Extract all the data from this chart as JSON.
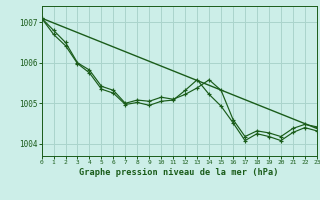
{
  "background_color": "#cceee8",
  "grid_color": "#aad4cc",
  "line_color": "#1a5c1a",
  "title": "Graphe pression niveau de la mer (hPa)",
  "xlim": [
    0,
    23
  ],
  "ylim": [
    1003.7,
    1007.4
  ],
  "yticks": [
    1004,
    1005,
    1006,
    1007
  ],
  "xticks": [
    0,
    1,
    2,
    3,
    4,
    5,
    6,
    7,
    8,
    9,
    10,
    11,
    12,
    13,
    14,
    15,
    16,
    17,
    18,
    19,
    20,
    21,
    22,
    23
  ],
  "series1": [
    1007.1,
    1006.8,
    1006.5,
    1006.0,
    1005.82,
    1005.42,
    1005.32,
    1005.0,
    1005.08,
    1005.05,
    1005.15,
    1005.1,
    1005.22,
    1005.38,
    1005.58,
    1005.32,
    1004.6,
    1004.18,
    1004.32,
    1004.27,
    1004.18,
    1004.38,
    1004.48,
    1004.42
  ],
  "series2": [
    1007.1,
    1006.7,
    1006.42,
    1005.98,
    1005.75,
    1005.35,
    1005.25,
    1004.97,
    1005.02,
    1004.95,
    1005.05,
    1005.08,
    1005.32,
    1005.58,
    1005.22,
    1004.93,
    1004.52,
    1004.08,
    1004.25,
    1004.18,
    1004.08,
    1004.28,
    1004.4,
    1004.32
  ],
  "trend_line": [
    [
      0,
      1007.1
    ],
    [
      23,
      1004.38
    ]
  ]
}
